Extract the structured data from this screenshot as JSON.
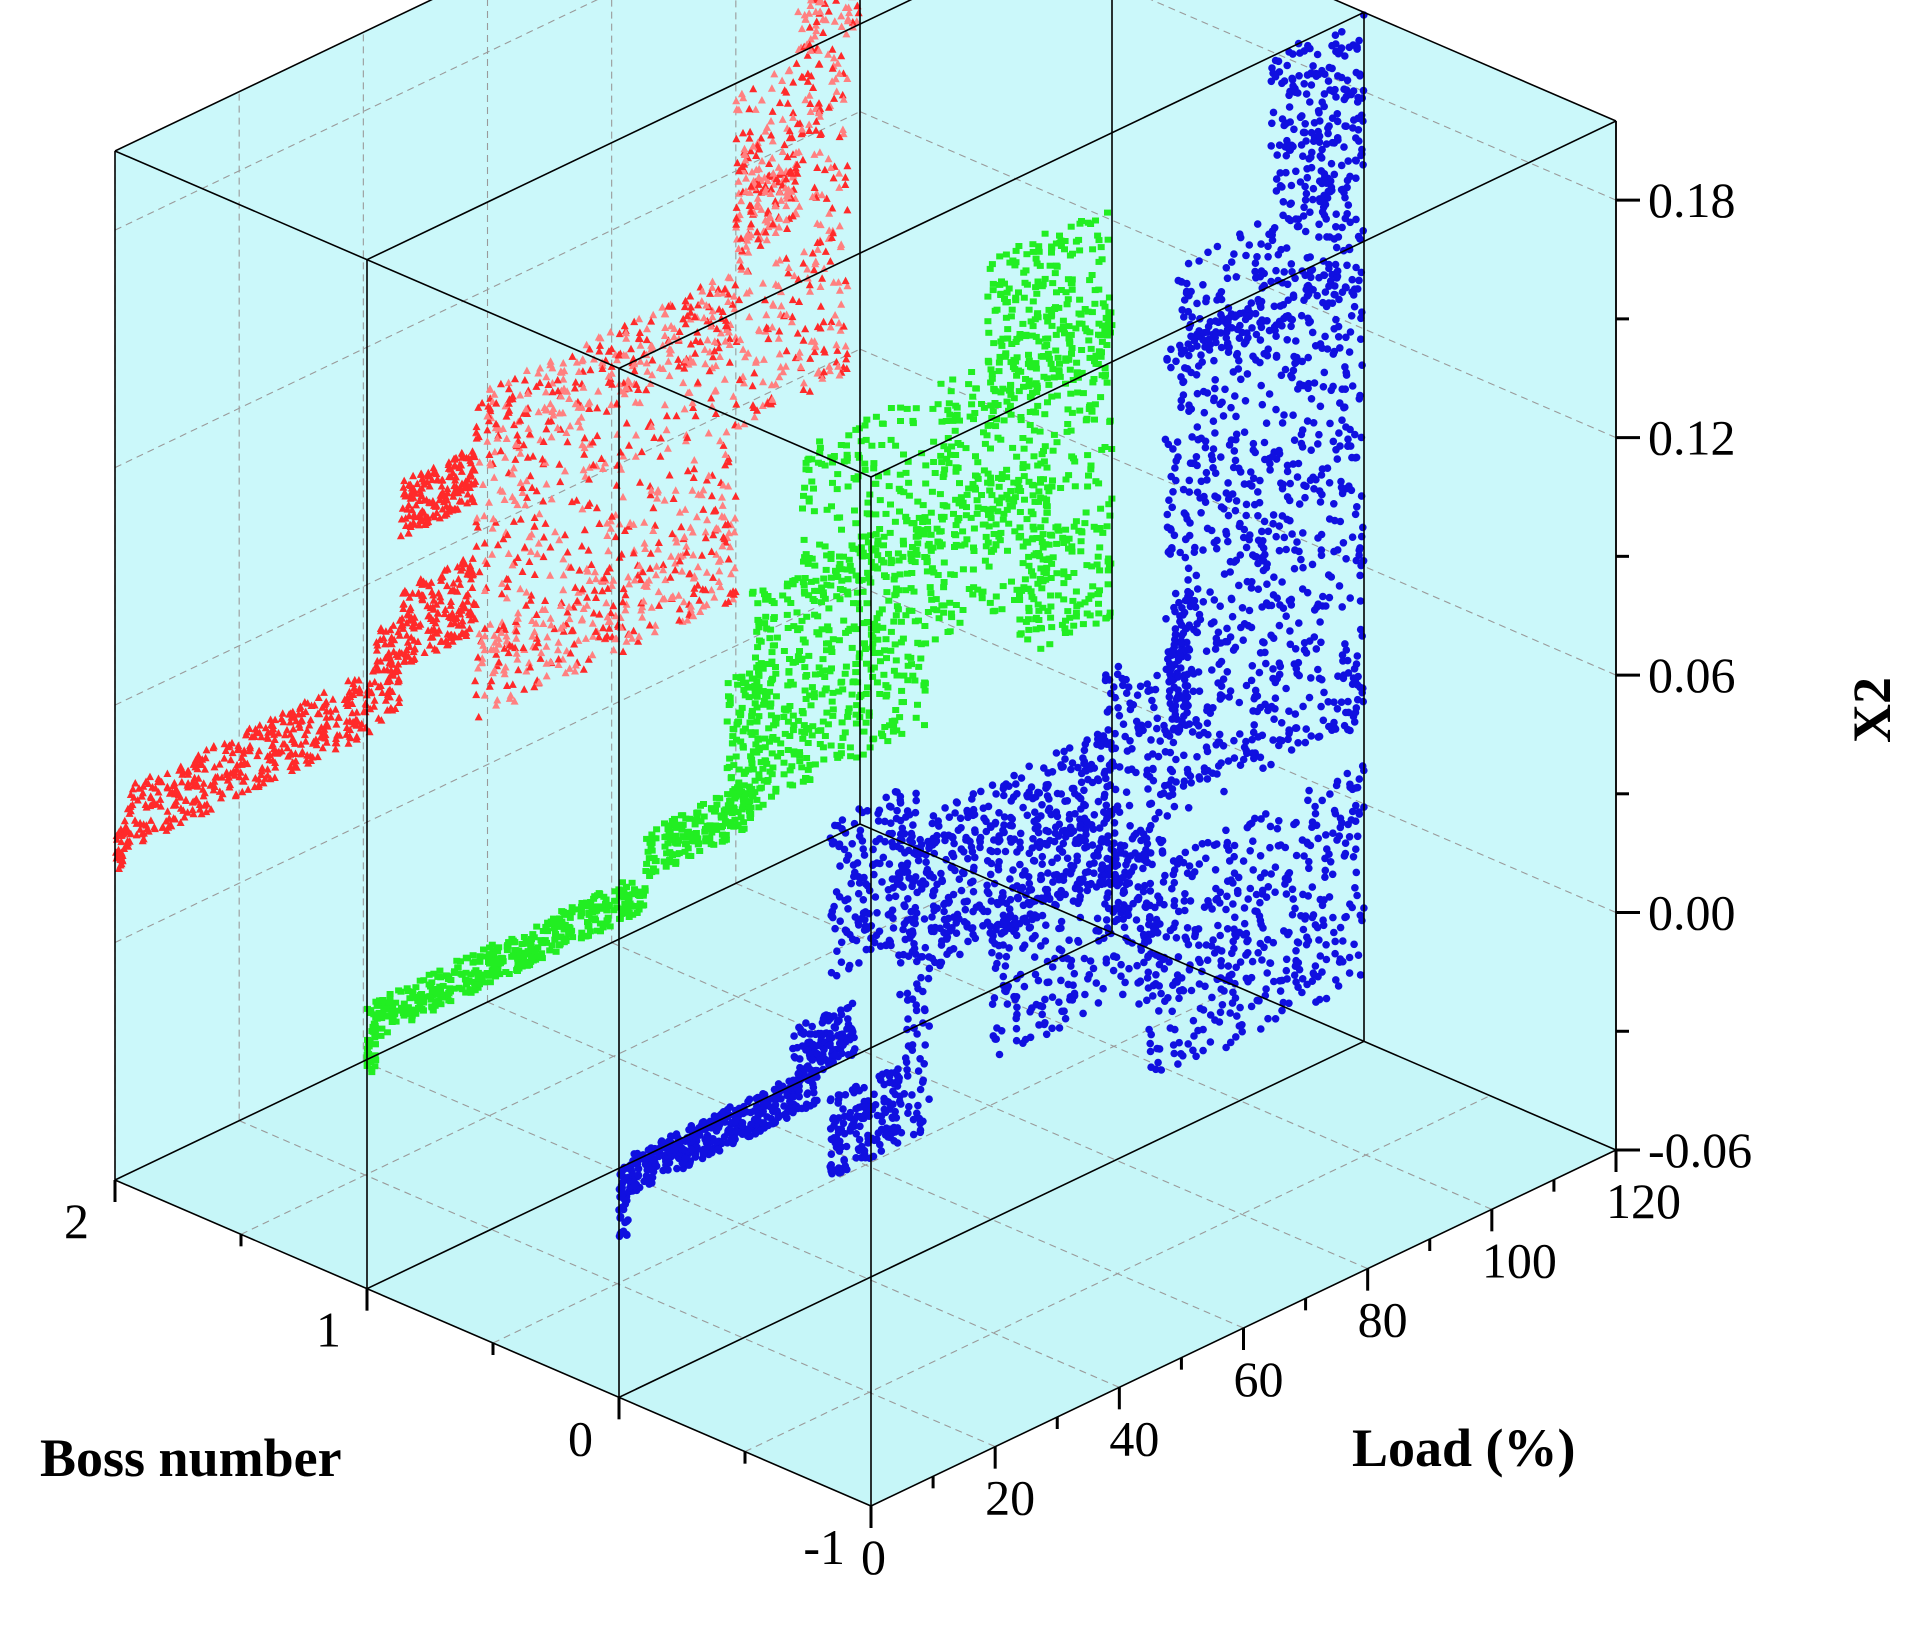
{
  "chart_data": {
    "type": "scatter",
    "title": "",
    "xlabel": "Boss number",
    "ylabel": "Load (%)",
    "zlabel": "X2",
    "x_ticks": [
      "2",
      "1",
      "0",
      "-1"
    ],
    "y_ticks": [
      "0",
      "20",
      "40",
      "60",
      "80",
      "100",
      "120"
    ],
    "z_ticks": [
      "0.18",
      "0.12",
      "0.06",
      "0.00",
      "-0.06"
    ],
    "xlim": [
      -1,
      2
    ],
    "ylim": [
      0,
      120
    ],
    "zlim": [
      -0.06,
      0.2
    ],
    "grid": true,
    "colors": {
      "wall": "#cbf8fa",
      "floor": "#c6f6f8",
      "red": "#ff2a2a",
      "red_light": "#ff8080",
      "green": "#22ee22",
      "blue": "#1010e0"
    },
    "series": [
      {
        "boss": 2,
        "color": "#ff2a2a",
        "marker": "triangle",
        "regions": [
          {
            "load": [
              0,
              1.5
            ],
            "x2": [
              0.018,
              0.028
            ],
            "n": 30
          },
          {
            "load": [
              1.5,
              42
            ],
            "x2": [
              0.022,
              0.038
            ],
            "n": 420
          },
          {
            "load": [
              42,
              46
            ],
            "x2": [
              0.024,
              0.048
            ],
            "n": 70
          },
          {
            "load": [
              46,
              58
            ],
            "x2": [
              0.035,
              0.055
            ],
            "n": 180
          },
          {
            "load": [
              46,
              58
            ],
            "x2": [
              0.068,
              0.082
            ],
            "n": 180
          },
          {
            "load": [
              58,
              100
            ],
            "x2": [
              0.012,
              0.035
            ],
            "n": 320
          },
          {
            "load": [
              58,
              100
            ],
            "x2": [
              0.075,
              0.095
            ],
            "n": 320
          },
          {
            "load": [
              58,
              100
            ],
            "x2": [
              0.035,
              0.075
            ],
            "n": 260
          },
          {
            "load": [
              100,
              118
            ],
            "x2": [
              0.055,
              0.14
            ],
            "n": 320
          },
          {
            "load": [
              100,
              110
            ],
            "x2": [
              0.1,
              0.125
            ],
            "n": 120
          },
          {
            "load": [
              110,
              120
            ],
            "x2": [
              0.14,
              0.19
            ],
            "n": 220
          },
          {
            "load": [
              118,
              120
            ],
            "x2": [
              0.16,
              0.19
            ],
            "n": 60
          }
        ]
      },
      {
        "boss": 1,
        "color": "#22ee22",
        "marker": "square",
        "regions": [
          {
            "load": [
              0,
              1.5
            ],
            "x2": [
              -0.006,
              0.012
            ],
            "n": 40
          },
          {
            "load": [
              1.5,
              45
            ],
            "x2": [
              0.002,
              0.012
            ],
            "n": 420
          },
          {
            "load": [
              45,
              62
            ],
            "x2": [
              0.01,
              0.022
            ],
            "n": 180
          },
          {
            "load": [
              58,
              66
            ],
            "x2": [
              0.012,
              0.05
            ],
            "n": 120
          },
          {
            "load": [
              62,
              110
            ],
            "x2": [
              0.035,
              0.07
            ],
            "n": 450
          },
          {
            "load": [
              70,
              120
            ],
            "x2": [
              0.055,
              0.1
            ],
            "n": 420
          },
          {
            "load": [
              100,
              120
            ],
            "x2": [
              0.085,
              0.125
            ],
            "n": 230
          },
          {
            "load": [
              62,
              90
            ],
            "x2": [
              0.015,
              0.035
            ],
            "n": 160
          },
          {
            "load": [
              105,
              120
            ],
            "x2": [
              0.02,
              0.05
            ],
            "n": 140
          }
        ]
      },
      {
        "boss": 0,
        "color": "#1010e0",
        "marker": "circle",
        "regions": [
          {
            "load": [
              0,
              1.5
            ],
            "x2": [
              -0.02,
              -0.002
            ],
            "n": 40
          },
          {
            "load": [
              1.5,
              32
            ],
            "x2": [
              -0.01,
              0.0
            ],
            "n": 380
          },
          {
            "load": [
              28,
              38
            ],
            "x2": [
              -0.002,
              0.012
            ],
            "n": 130
          },
          {
            "load": [
              34,
              45
            ],
            "x2": [
              -0.03,
              -0.01
            ],
            "n": 150
          },
          {
            "load": [
              34,
              48
            ],
            "x2": [
              0.02,
              0.06
            ],
            "n": 170
          },
          {
            "load": [
              45,
              50
            ],
            "x2": [
              -0.03,
              0.05
            ],
            "n": 110
          },
          {
            "load": [
              50,
              80
            ],
            "x2": [
              0.01,
              0.05
            ],
            "n": 470
          },
          {
            "load": [
              60,
              85
            ],
            "x2": [
              -0.02,
              0.02
            ],
            "n": 220
          },
          {
            "load": [
              78,
              83
            ],
            "x2": [
              0.0,
              0.065
            ],
            "n": 80
          },
          {
            "load": [
              83,
              88
            ],
            "x2": [
              -0.025,
              0.06
            ],
            "n": 100
          },
          {
            "load": [
              88,
              92
            ],
            "x2": [
              0.04,
              0.075
            ],
            "n": 80
          },
          {
            "load": [
              85,
              120
            ],
            "x2": [
              -0.045,
              0.01
            ],
            "n": 420
          },
          {
            "load": [
              88,
              120
            ],
            "x2": [
              0.02,
              0.08
            ],
            "n": 380
          },
          {
            "load": [
              88,
              120
            ],
            "x2": [
              0.08,
              0.14
            ],
            "n": 380
          },
          {
            "load": [
              90,
              120
            ],
            "x2": [
              0.13,
              0.16
            ],
            "n": 200
          },
          {
            "load": [
              105,
              120
            ],
            "x2": [
              0.155,
              0.2
            ],
            "n": 200
          }
        ]
      }
    ]
  }
}
